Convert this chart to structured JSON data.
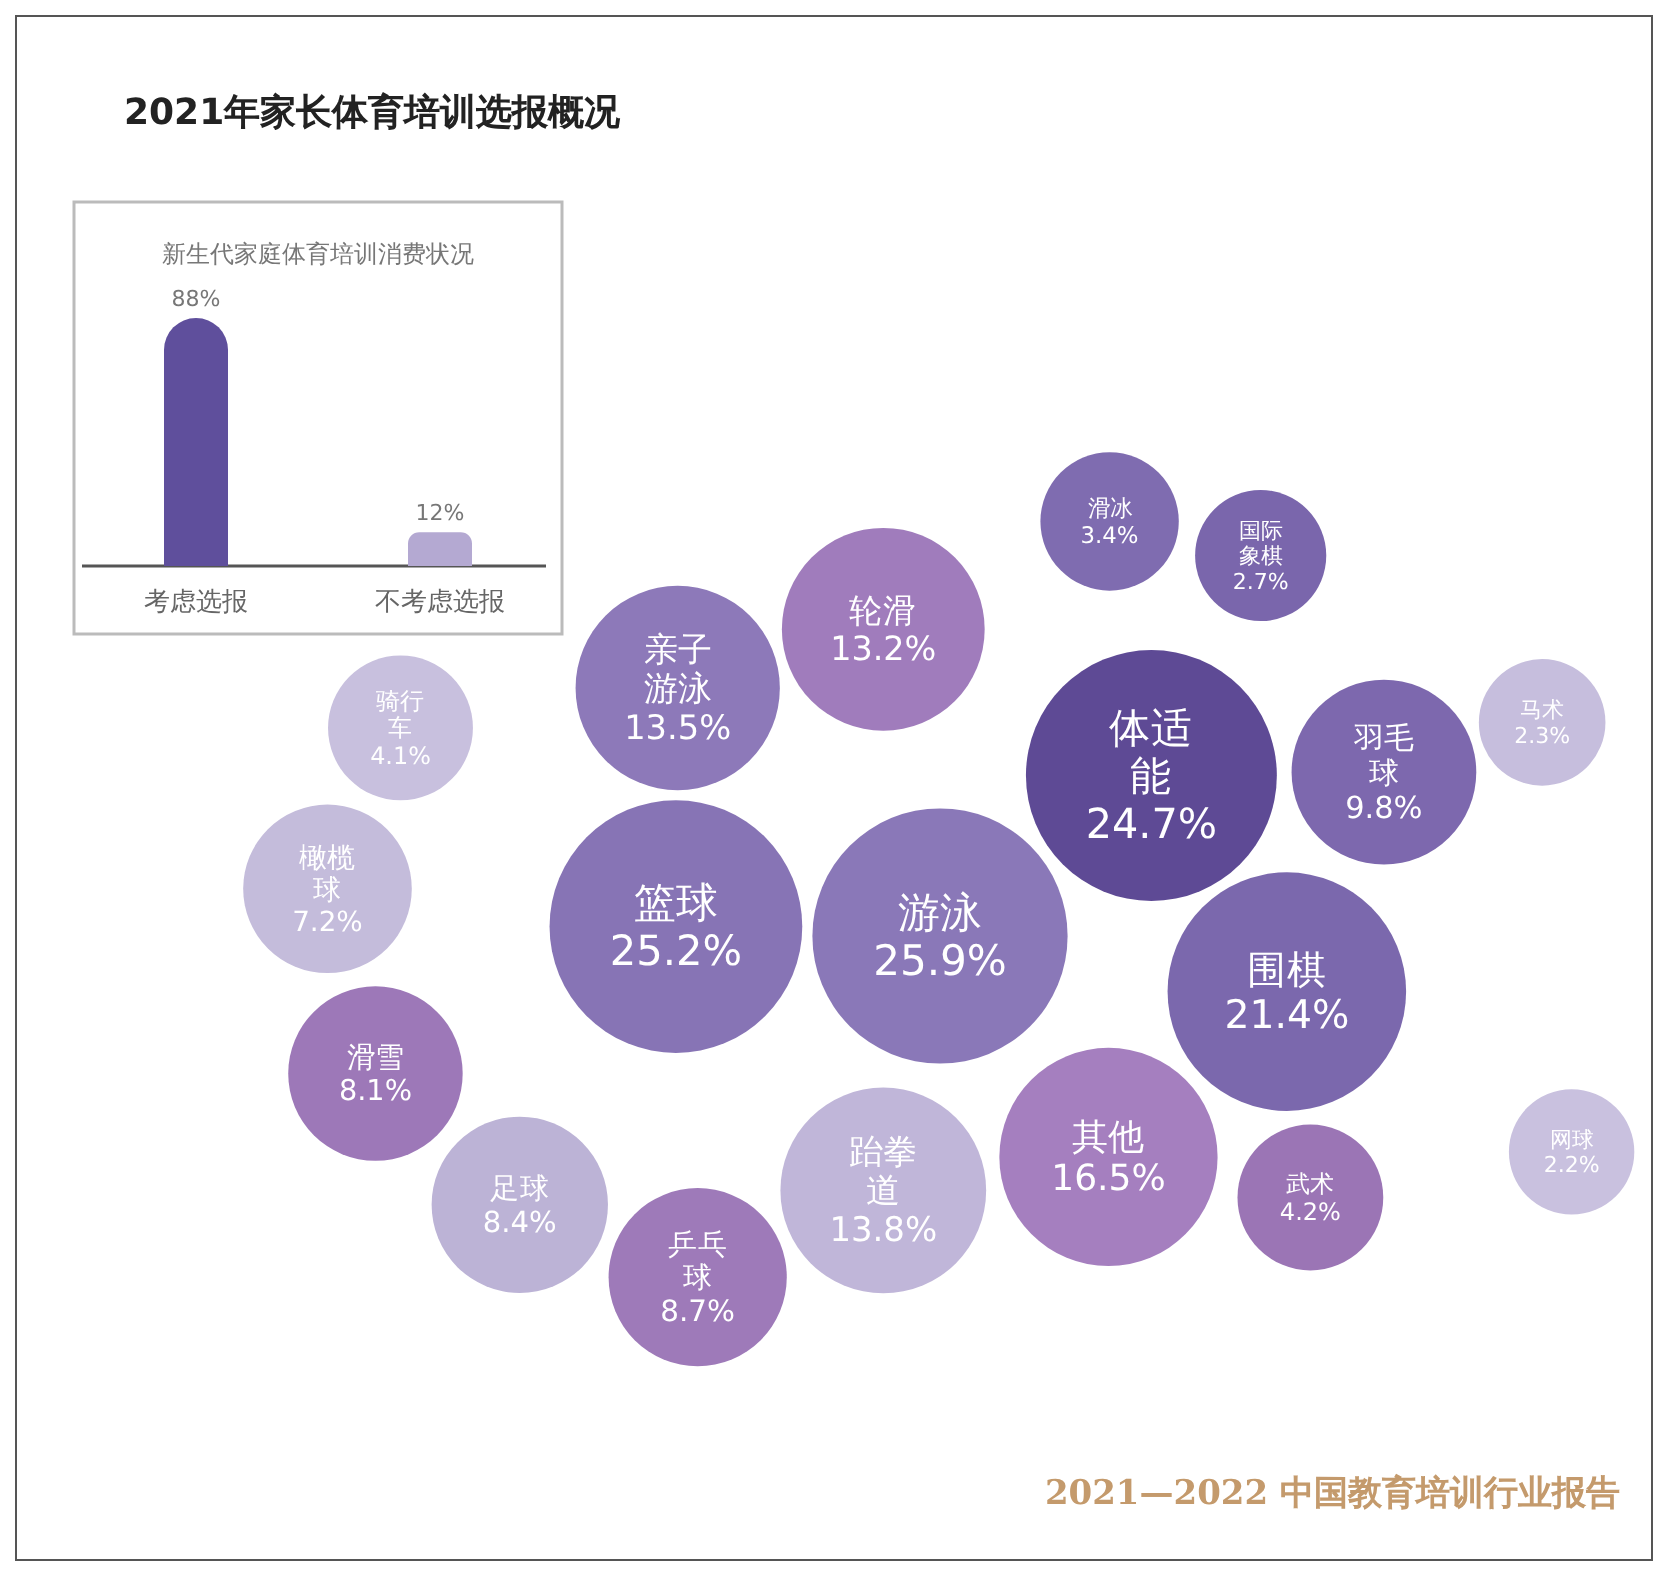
{
  "chart_data": [
    {
      "type": "other",
      "title": "2021年家长体育培训选报概况",
      "categories": [
        "游泳",
        "篮球",
        "体适能",
        "围棋",
        "其他",
        "跆拳道",
        "亲子游泳",
        "轮滑",
        "羽毛球",
        "乒乓球",
        "足球",
        "滑雪",
        "橄榄球",
        "武术",
        "骑行车",
        "滑冰",
        "国际象棋",
        "马术",
        "网球"
      ],
      "values": [
        25.9,
        25.2,
        24.7,
        21.4,
        16.5,
        13.8,
        13.5,
        13.2,
        9.8,
        8.7,
        8.4,
        8.1,
        7.2,
        4.2,
        4.1,
        3.4,
        2.7,
        2.3,
        2.2
      ],
      "value_labels": [
        "25.9%",
        "25.2%",
        "24.7%",
        "21.4%",
        "16.5%",
        "13.8%",
        "13.5%",
        "13.2%",
        "9.8%",
        "8.7%",
        "8.4%",
        "8.1%",
        "7.2%",
        "4.2%",
        "4.1%",
        "3.4%",
        "2.7%",
        "2.3%",
        "2.2%"
      ],
      "colors": [
        "#8a78b8",
        "#8774b5",
        "#5e4a95",
        "#7b68ad",
        "#a57fbf",
        "#c0b6d9",
        "#8d79b9",
        "#a07cbc",
        "#7d68ae",
        "#9e7ab9",
        "#bcb3d6",
        "#9d78b8",
        "#c4bcdb",
        "#9b75b5",
        "#c8c0de",
        "#7f6cb0",
        "#7a66ac",
        "#c6bedd",
        "#c9c1df"
      ],
      "annotations": [
        "2021—2022 中国教育培训行业报告"
      ]
    },
    {
      "type": "bar",
      "title": "新生代家庭体育培训消费状况",
      "categories": [
        "考虑选报",
        "不考虑选报"
      ],
      "values": [
        88,
        12
      ],
      "value_labels": [
        "88%",
        "12%"
      ],
      "colors": [
        "#5f4f9c",
        "#b4a9d2"
      ]
    }
  ]
}
